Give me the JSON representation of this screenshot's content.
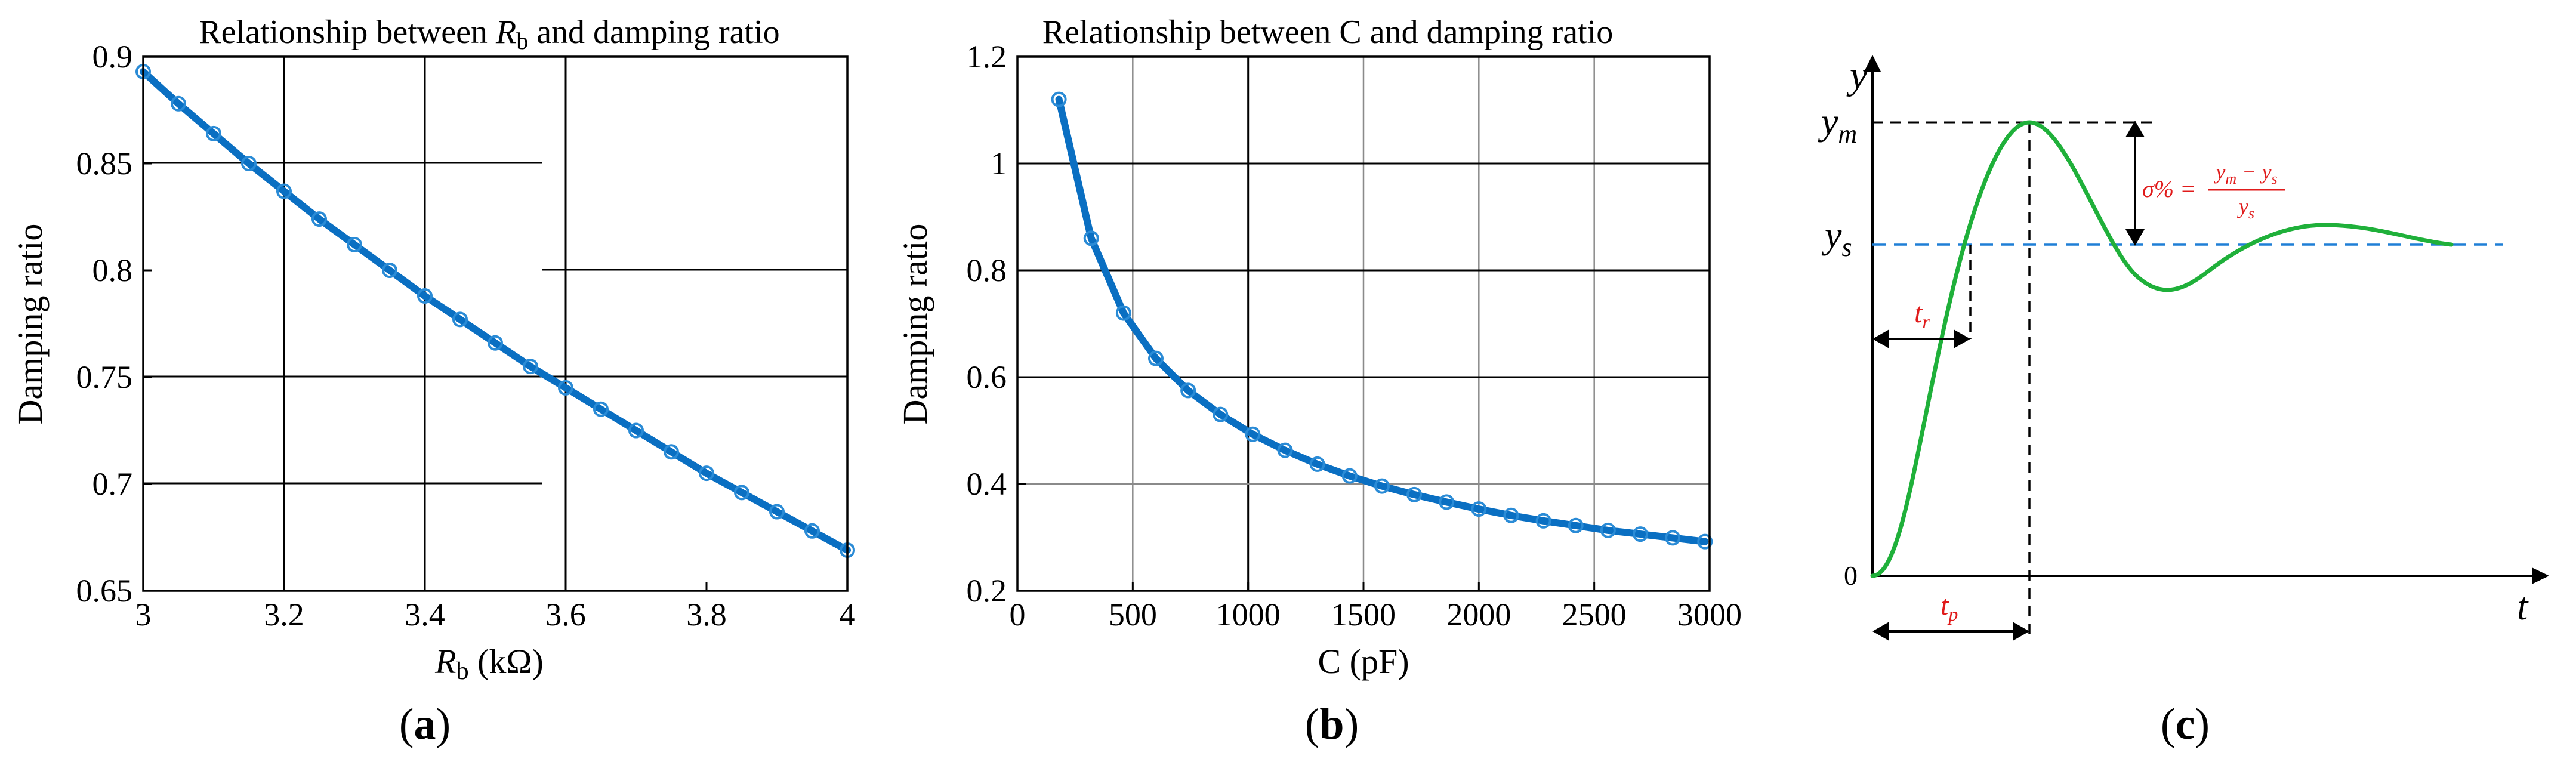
{
  "chart_data": [
    {
      "type": "line",
      "title_prefix": "Relationship between ",
      "title_var": "R",
      "title_sub": "b",
      "title_suffix": " and damping ratio",
      "xlabel_var": "R",
      "xlabel_sub": "b",
      "xlabel_unit": " (kΩ)",
      "ylabel": "Damping ratio",
      "xlim": [
        3,
        4
      ],
      "ylim": [
        0.65,
        0.9
      ],
      "xticks": [
        "3",
        "3.2",
        "3.4",
        "3.6",
        "3.8",
        "4"
      ],
      "yticks": [
        "0.65",
        "0.7",
        "0.75",
        "0.8",
        "0.85",
        "0.9"
      ],
      "x": [
        3.0,
        3.05,
        3.1,
        3.15,
        3.2,
        3.25,
        3.3,
        3.35,
        3.4,
        3.45,
        3.5,
        3.55,
        3.6,
        3.65,
        3.7,
        3.75,
        3.8,
        3.85,
        3.9,
        3.95,
        4.0
      ],
      "y": [
        0.893,
        0.878,
        0.864,
        0.85,
        0.837,
        0.824,
        0.812,
        0.8,
        0.788,
        0.777,
        0.766,
        0.755,
        0.745,
        0.735,
        0.725,
        0.715,
        0.705,
        0.696,
        0.687,
        0.678,
        0.669
      ],
      "panel_label": "a"
    },
    {
      "type": "line",
      "title": "Relationship between C and damping ratio",
      "xlabel": "C (pF)",
      "ylabel": "Damping ratio",
      "xlim": [
        0,
        3000
      ],
      "ylim": [
        0.2,
        1.2
      ],
      "xticks": [
        "0",
        "500",
        "1000",
        "1500",
        "2000",
        "2500",
        "3000"
      ],
      "yticks": [
        "0.2",
        "0.4",
        "0.6",
        "0.8",
        "1",
        "1.2"
      ],
      "x": [
        180,
        320,
        460,
        600,
        740,
        880,
        1020,
        1160,
        1300,
        1440,
        1580,
        1720,
        1860,
        2000,
        2140,
        2280,
        2420,
        2560,
        2700,
        2840,
        2980
      ],
      "y": [
        1.12,
        0.86,
        0.72,
        0.635,
        0.575,
        0.53,
        0.493,
        0.463,
        0.437,
        0.415,
        0.396,
        0.38,
        0.366,
        0.353,
        0.341,
        0.331,
        0.322,
        0.313,
        0.306,
        0.299,
        0.292
      ],
      "panel_label": "b"
    },
    {
      "type": "diagram",
      "y_axis": "y",
      "x_axis": "t",
      "origin": "0",
      "ym_label": "y",
      "ym_sub": "m",
      "ys_label": "y",
      "ys_sub": "s",
      "tr_label": "t",
      "tr_sub": "r",
      "tp_label": "t",
      "tp_sub": "p",
      "overshoot": {
        "lhs": "σ% =",
        "numerator": "y",
        "num_sub1": "m",
        "num_mid": " − y",
        "num_sub2": "s",
        "denominator": "y",
        "den_sub": "s"
      },
      "colors": {
        "response": "#1fb03a",
        "steady": "#1f7fd6",
        "label": "#e01b1b"
      },
      "panel_label": "c"
    }
  ]
}
